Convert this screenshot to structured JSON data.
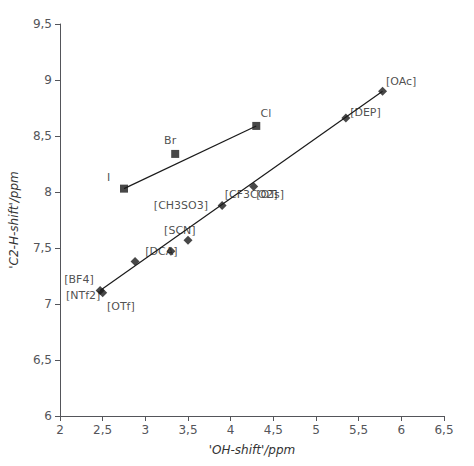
{
  "chart_data": {
    "type": "scatter",
    "xlabel": "'OH-shift'/ppm",
    "ylabel": "'C2-H-shift'/ppm",
    "xlim": [
      2.0,
      6.5
    ],
    "ylim": [
      6.0,
      9.5
    ],
    "xticks": [
      2,
      {
        "value": 2.5,
        "label": "2,5"
      },
      3,
      {
        "value": 3.5,
        "label": "3,5"
      },
      4,
      {
        "value": 4.5,
        "label": "4,5"
      },
      5,
      {
        "value": 5.5,
        "label": "5,5"
      },
      6,
      {
        "value": 6.5,
        "label": "6,5"
      }
    ],
    "yticks": [
      6,
      {
        "value": 6.5,
        "label": "6,5"
      },
      7,
      {
        "value": 7.5,
        "label": "7,5"
      },
      8,
      {
        "value": 8.5,
        "label": "8,5"
      },
      9,
      {
        "value": 9.5,
        "label": "9,5"
      }
    ],
    "grid": false,
    "series": [
      {
        "type": "line",
        "line_style": "solid",
        "color": "#1a1a1a",
        "x": [
          2.75,
          4.3
        ],
        "values": [
          8.03,
          8.59
        ]
      },
      {
        "type": "line",
        "line_style": "solid",
        "color": "#1a1a1a",
        "x": [
          2.47,
          5.78
        ],
        "values": [
          7.12,
          8.9
        ]
      },
      {
        "type": "scatter",
        "marker": "square",
        "color": "#1a1a1a",
        "x": [
          2.75,
          3.35,
          4.3
        ],
        "values": [
          8.03,
          8.34,
          8.59
        ]
      },
      {
        "type": "scatter",
        "marker": "diamond",
        "color": "#1a1a1a",
        "x": [
          2.47,
          2.5,
          2.88,
          3.3,
          3.5,
          3.9,
          4.27,
          5.35,
          5.78
        ],
        "values": [
          7.12,
          7.1,
          7.38,
          7.47,
          7.57,
          7.88,
          8.05,
          8.66,
          8.9
        ]
      }
    ],
    "annotations": [
      {
        "text": "I",
        "x": 2.55,
        "y": 8.08,
        "position": "above"
      },
      {
        "text": "Br",
        "x": 3.22,
        "y": 8.41,
        "position": "above"
      },
      {
        "text": "Cl",
        "x": 4.35,
        "y": 8.65,
        "position": "above"
      },
      {
        "text": "[BF4]",
        "x": 2.05,
        "y": 7.17,
        "position": "above"
      },
      {
        "text": "[NTf2]",
        "x": 2.07,
        "y": 7.03,
        "position": "above"
      },
      {
        "text": "[DCA]",
        "x": 3.0,
        "y": 7.42,
        "position": "above"
      },
      {
        "text": "[SCN]",
        "x": 3.22,
        "y": 7.61,
        "position": "above"
      },
      {
        "text": "[CF3CO2]",
        "x": 3.93,
        "y": 7.93,
        "position": "above"
      },
      {
        "text": "[OTs]",
        "x": 4.3,
        "y": 7.93,
        "position": "above"
      },
      {
        "text": "[DEP]",
        "x": 5.4,
        "y": 8.66,
        "position": "above"
      },
      {
        "text": "[OAc]",
        "x": 5.82,
        "y": 8.94,
        "position": "above"
      },
      {
        "text": "[OTf]",
        "x": 2.55,
        "y": 7.03,
        "position": "below"
      },
      {
        "text": "[CH3SO3]",
        "x": 3.1,
        "y": 7.93,
        "position": "below"
      }
    ]
  }
}
